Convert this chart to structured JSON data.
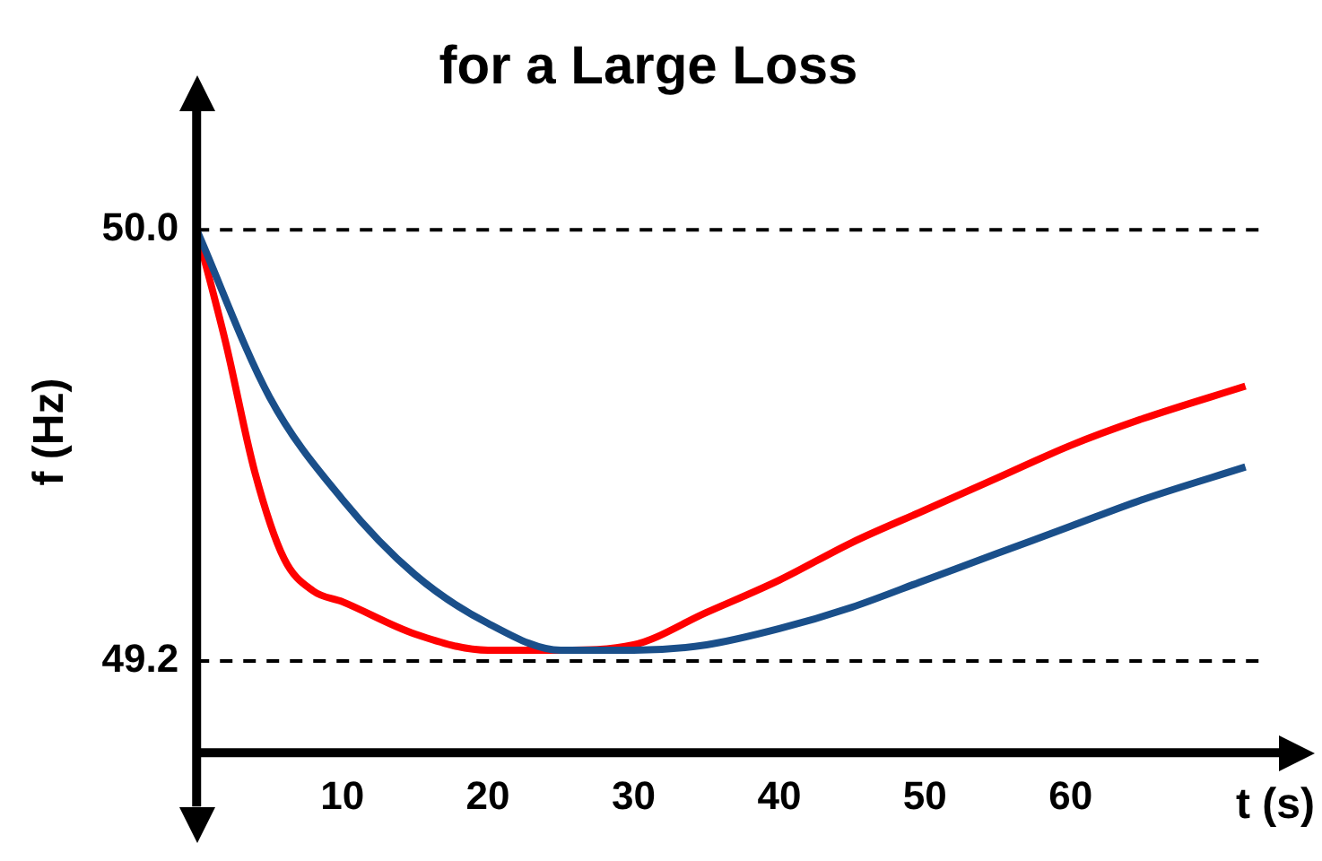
{
  "chart_data": {
    "type": "line",
    "title": "for a Large Loss",
    "xlabel": "t (s)",
    "ylabel": "f (Hz)",
    "xlim": [
      0,
      74.3
    ],
    "ylim": [
      49.03,
      50.22
    ],
    "xticks": [
      10,
      20,
      30,
      40,
      50,
      60
    ],
    "yticks": [
      {
        "value": 49.2,
        "label": "49.2"
      },
      {
        "value": 50,
        "label": "50.0"
      }
    ],
    "ref_lines": [
      {
        "axis": "y",
        "value": 50,
        "color": "#000000",
        "line_style": "dashed"
      },
      {
        "axis": "y",
        "value": 49.2,
        "color": "#000000",
        "line_style": "dashed"
      }
    ],
    "series": [
      {
        "color": "#1a4f8a",
        "x": [
          0,
          5,
          10,
          15,
          20,
          25,
          30,
          35,
          40,
          45,
          50,
          55,
          60,
          65,
          72
        ],
        "values": [
          50,
          49.69,
          49.5,
          49.36,
          49.27,
          49.22,
          49.22,
          49.23,
          49.26,
          49.3,
          49.35,
          49.4,
          49.45,
          49.5,
          49.56
        ]
      },
      {
        "color": "#ff0000",
        "x": [
          0,
          2,
          4,
          6,
          8,
          10,
          15,
          20,
          25,
          30,
          35,
          40,
          45,
          50,
          55,
          60,
          65,
          72
        ],
        "values": [
          50,
          49.79,
          49.55,
          49.39,
          49.33,
          49.31,
          49.25,
          49.22,
          49.22,
          49.23,
          49.29,
          49.35,
          49.42,
          49.48,
          49.54,
          49.6,
          49.65,
          49.71
        ]
      }
    ]
  }
}
